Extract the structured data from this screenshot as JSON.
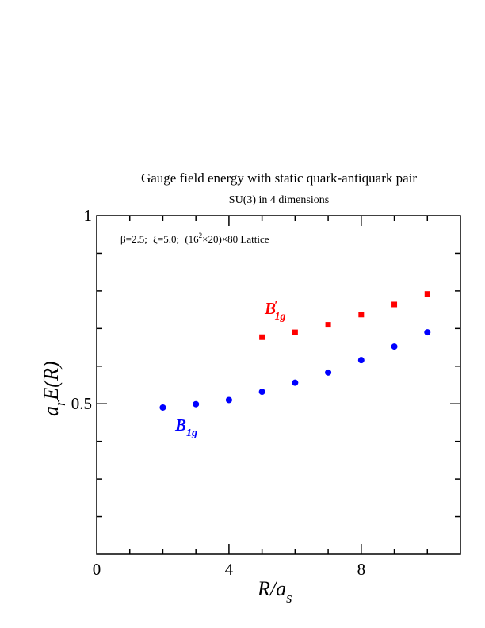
{
  "chart_data": {
    "type": "scatter",
    "title": "Gauge field energy with static quark-antiquark pair",
    "subtitle": "SU(3) in 4 dimensions",
    "annotation": {
      "beta": "β=2.5;",
      "xi": "ξ=5.0;",
      "lattice_open": "(16",
      "lattice_exp": "2",
      "lattice_rest": "×20)×80 Lattice"
    },
    "xlabel": {
      "main": "R/a",
      "sub": "s"
    },
    "ylabel": {
      "prefix": "a",
      "sub": "r",
      "main": "E(R)"
    },
    "xlim": [
      0,
      11
    ],
    "ylim": [
      0.1,
      1.0
    ],
    "x_ticks": [
      0,
      4,
      8
    ],
    "y_ticks": [
      0.5,
      1
    ],
    "x_minor_step": 1,
    "y_minor_step": 0.1,
    "series": [
      {
        "name": "B_1g",
        "label_main": "B",
        "label_sub": "1g",
        "label_prime": "",
        "color": "#0000ff",
        "marker": "circle",
        "x": [
          2,
          3,
          4,
          5,
          6,
          7,
          8,
          9,
          10
        ],
        "y": [
          0.49,
          0.499,
          0.51,
          0.532,
          0.556,
          0.583,
          0.616,
          0.652,
          0.69
        ]
      },
      {
        "name": "B'_1g",
        "label_main": "B",
        "label_sub": "1g",
        "label_prime": "′",
        "color": "#ff0000",
        "marker": "square",
        "x": [
          5,
          6,
          7,
          8,
          9,
          10
        ],
        "y": [
          0.677,
          0.69,
          0.71,
          0.737,
          0.764,
          0.792
        ]
      }
    ]
  }
}
